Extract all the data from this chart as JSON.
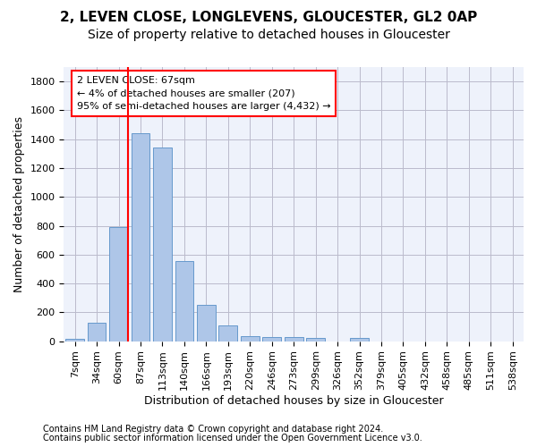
{
  "title1": "2, LEVEN CLOSE, LONGLEVENS, GLOUCESTER, GL2 0AP",
  "title2": "Size of property relative to detached houses in Gloucester",
  "xlabel": "Distribution of detached houses by size in Gloucester",
  "ylabel": "Number of detached properties",
  "categories": [
    "7sqm",
    "34sqm",
    "60sqm",
    "87sqm",
    "113sqm",
    "140sqm",
    "166sqm",
    "193sqm",
    "220sqm",
    "246sqm",
    "273sqm",
    "299sqm",
    "326sqm",
    "352sqm",
    "379sqm",
    "405sqm",
    "432sqm",
    "458sqm",
    "485sqm",
    "511sqm",
    "538sqm"
  ],
  "values": [
    15,
    130,
    790,
    1440,
    1340,
    555,
    250,
    110,
    35,
    30,
    30,
    20,
    0,
    20,
    0,
    0,
    0,
    0,
    0,
    0,
    0
  ],
  "bar_color": "#aec6e8",
  "bar_edge_color": "#6699cc",
  "vline_color": "red",
  "annotation_text": "2 LEVEN CLOSE: 67sqm\n← 4% of detached houses are smaller (207)\n95% of semi-detached houses are larger (4,432) →",
  "annotation_box_color": "red",
  "annotation_text_color": "black",
  "ylim": [
    0,
    1900
  ],
  "yticks": [
    0,
    200,
    400,
    600,
    800,
    1000,
    1200,
    1400,
    1600,
    1800
  ],
  "footer1": "Contains HM Land Registry data © Crown copyright and database right 2024.",
  "footer2": "Contains public sector information licensed under the Open Government Licence v3.0.",
  "bg_color": "#eef2fb",
  "grid_color": "#bbbbcc",
  "title1_fontsize": 11,
  "title2_fontsize": 10,
  "axis_label_fontsize": 9,
  "tick_fontsize": 8,
  "footer_fontsize": 7
}
